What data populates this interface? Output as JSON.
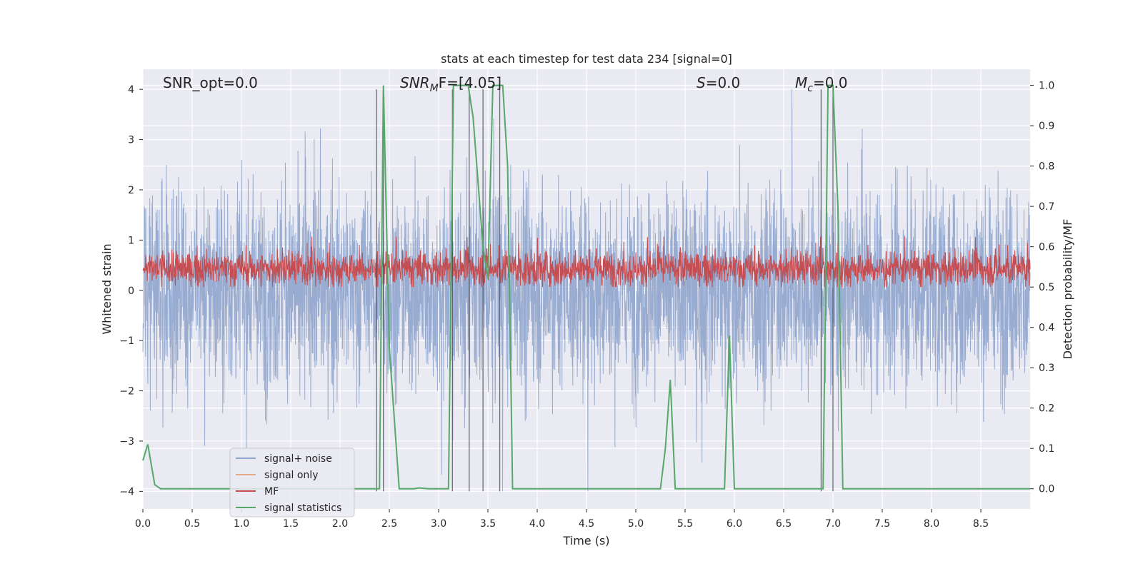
{
  "chart_data": {
    "type": "line",
    "title": "stats at each timestep for test data 234 [signal=0]",
    "xlabel": "Time (s)",
    "ylabel_left": "Whitened strain",
    "ylabel_right": "Detection probability/MF",
    "xlim": [
      0.0,
      9.0
    ],
    "ylim_left": [
      -4.35,
      4.4
    ],
    "ylim_right": [
      -0.05,
      1.04
    ],
    "x_ticks": [
      "0.0",
      "0.5",
      "1.0",
      "1.5",
      "2.0",
      "2.5",
      "3.0",
      "3.5",
      "4.0",
      "4.5",
      "5.0",
      "5.5",
      "6.0",
      "6.5",
      "7.0",
      "7.5",
      "8.0",
      "8.5"
    ],
    "y_left_ticks": [
      "−4",
      "−3",
      "−2",
      "−1",
      "0",
      "1",
      "2",
      "3",
      "4"
    ],
    "y_right_ticks": [
      "0.0",
      "0.1",
      "0.2",
      "0.3",
      "0.4",
      "0.5",
      "0.6",
      "0.7",
      "0.8",
      "0.9",
      "1.0"
    ],
    "grid": true,
    "legend_position": "lower-left",
    "annotations": [
      {
        "text": "SNR_opt=0.0"
      },
      {
        "text": "SNR_MF=[4.05]",
        "main": "SNR",
        "sub": "M",
        "tail": "F=[4.05]"
      },
      {
        "text": "S=0.0",
        "main": "S",
        "tail": "=0.0"
      },
      {
        "text": "M_c=0.0",
        "main": "M",
        "sub": "c",
        "tail": "=0.0"
      }
    ],
    "series": [
      {
        "name": "signal+ noise",
        "color": "#8fa4cc",
        "axis": "left",
        "style": "noise, std approx 1.0, spikes to ±4"
      },
      {
        "name": "signal only",
        "color": "#e8a98a",
        "axis": "left",
        "values": []
      },
      {
        "name": "MF",
        "color": "#c44e52",
        "axis": "right",
        "style": "noise band between approx 0.5 and 0.6"
      },
      {
        "name": "signal statistics",
        "color": "#55a868",
        "axis": "right",
        "x": [
          0.0,
          0.05,
          0.12,
          0.18,
          0.8,
          1.5,
          2.0,
          2.38,
          2.4,
          2.44,
          2.5,
          2.6,
          2.75,
          2.8,
          2.9,
          3.0,
          3.1,
          3.15,
          3.3,
          3.35,
          3.45,
          3.5,
          3.55,
          3.6,
          3.65,
          3.7,
          3.75,
          4.0,
          5.0,
          5.25,
          5.3,
          5.35,
          5.4,
          5.5,
          5.8,
          5.9,
          5.95,
          6.0,
          6.5,
          6.85,
          6.9,
          6.95,
          7.0,
          7.05,
          7.1,
          8.0,
          9.0
        ],
        "values": [
          0.07,
          0.11,
          0.01,
          0.0,
          0.0,
          0.0,
          0.0,
          0.0,
          0.0,
          1.0,
          0.35,
          0.0,
          0.0,
          0.002,
          0.0,
          0.0,
          0.0,
          1.0,
          1.0,
          0.92,
          0.6,
          0.52,
          1.0,
          1.0,
          1.0,
          0.8,
          0.0,
          0.0,
          0.0,
          0.0,
          0.1,
          0.27,
          0.0,
          0.0,
          0.0,
          0.0,
          0.38,
          0.0,
          0.0,
          0.0,
          0.0,
          1.0,
          1.0,
          0.7,
          0.0,
          0.0,
          0.0
        ]
      }
    ],
    "vlines_x": [
      2.37,
      2.44,
      3.14,
      3.31,
      3.45,
      3.62,
      6.88,
      7.0
    ],
    "legend": [
      {
        "label": "signal+ noise",
        "color": "#8fa4cc"
      },
      {
        "label": "signal only",
        "color": "#e8a98a"
      },
      {
        "label": "MF",
        "color": "#c44e52"
      },
      {
        "label": "signal statistics",
        "color": "#55a868"
      }
    ],
    "colors": {
      "plot_background": "#eaeaf2",
      "grid": "#ffffff",
      "vline": "#4a4a55"
    }
  }
}
